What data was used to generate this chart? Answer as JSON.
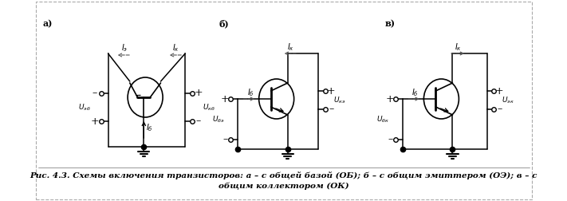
{
  "title_line1": "Рис. 4.3. Схемы включения транзисторов: а – с общей базой (ОБ); б – с общим эмиттером (ОЭ); в – с",
  "title_line2": "общим коллектором (ОК)",
  "label_a": "а)",
  "label_b": "б)",
  "label_v": "в)",
  "bg_color": "#ffffff",
  "line_color": "#000000",
  "font_size": 7.0,
  "caption_font_size": 7.5
}
